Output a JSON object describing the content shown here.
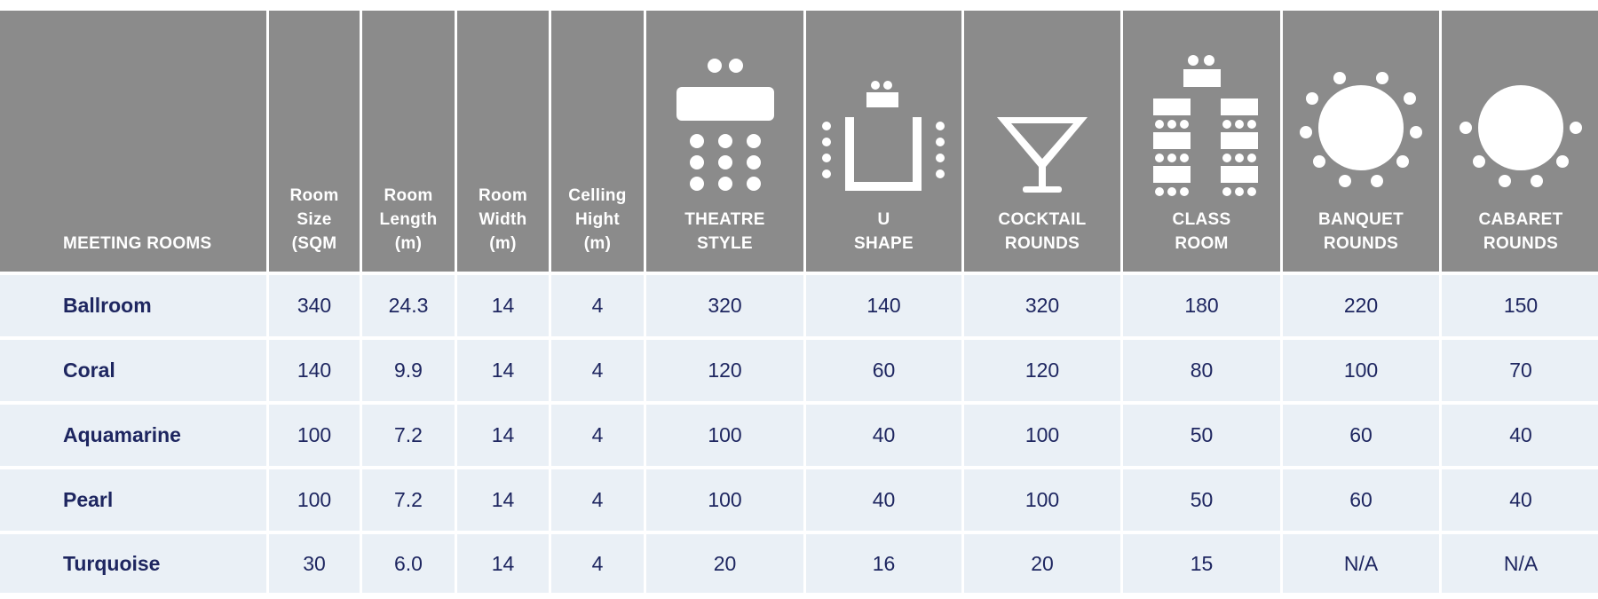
{
  "table": {
    "headers": [
      {
        "line1": "MEETING ROOMS",
        "line2": ""
      },
      {
        "line1": "Room",
        "line2": "Size",
        "line3": "(SQM"
      },
      {
        "line1": "Room",
        "line2": "Length",
        "line3": "(m)"
      },
      {
        "line1": "Room",
        "line2": "Width",
        "line3": "(m)"
      },
      {
        "line1": "Celling",
        "line2": "Hight",
        "line3": "(m)"
      },
      {
        "line1": "THEATRE",
        "line2": "STYLE",
        "icon": "theatre-layout-icon"
      },
      {
        "line1": "U",
        "line2": "SHAPE",
        "icon": "u-shape-layout-icon"
      },
      {
        "line1": "COCKTAIL",
        "line2": "ROUNDS",
        "icon": "cocktail-glass-icon"
      },
      {
        "line1": "CLASS",
        "line2": "ROOM",
        "icon": "classroom-layout-icon"
      },
      {
        "line1": "BANQUET",
        "line2": "ROUNDS",
        "icon": "banquet-round-table-icon"
      },
      {
        "line1": "CABARET",
        "line2": "ROUNDS",
        "icon": "cabaret-round-table-icon"
      }
    ],
    "rows": [
      [
        "Ballroom",
        "340",
        "24.3",
        "14",
        "4",
        "320",
        "140",
        "320",
        "180",
        "220",
        "150"
      ],
      [
        "Coral",
        "140",
        "9.9",
        "14",
        "4",
        "120",
        "60",
        "120",
        "80",
        "100",
        "70"
      ],
      [
        "Aquamarine",
        "100",
        "7.2",
        "14",
        "4",
        "100",
        "40",
        "100",
        "50",
        "60",
        "40"
      ],
      [
        "Pearl",
        "100",
        "7.2",
        "14",
        "4",
        "100",
        "40",
        "100",
        "50",
        "60",
        "40"
      ],
      [
        "Turquoise",
        "30",
        "6.0",
        "14",
        "4",
        "20",
        "16",
        "20",
        "15",
        "N/A",
        "N/A"
      ]
    ]
  },
  "colors": {
    "header_bg": "#8b8b8b",
    "row_bg": "#eaf0f6",
    "text_dark": "#1e2660",
    "header_text": "#ffffff"
  }
}
